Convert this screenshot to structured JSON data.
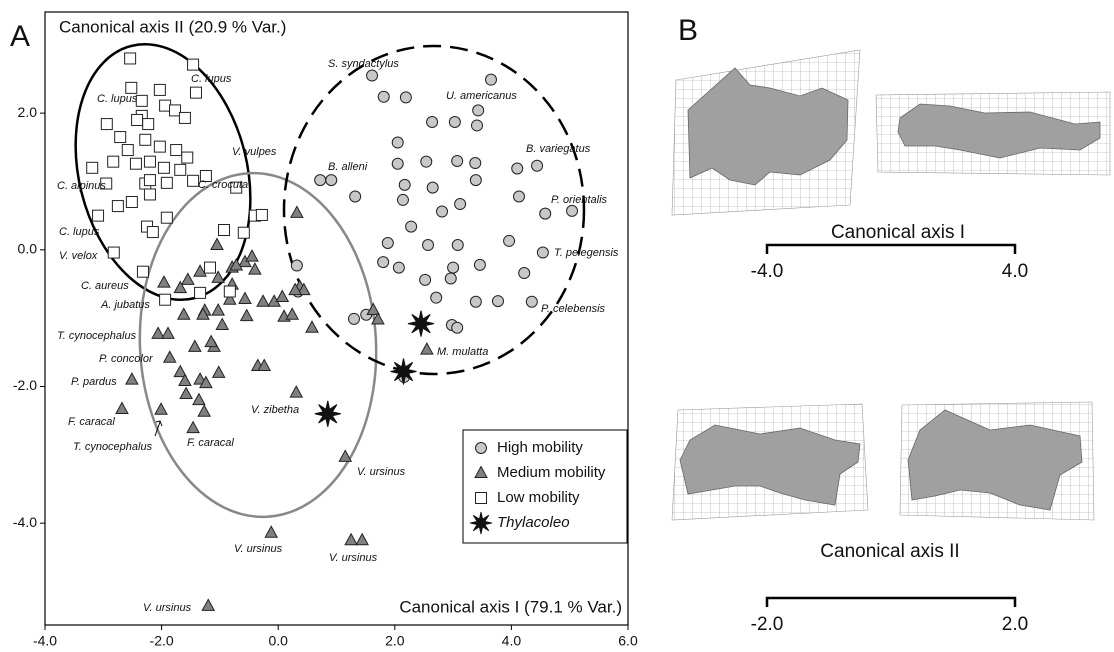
{
  "chart_data": {
    "type": "scatter",
    "panel_label": "A",
    "x_label": "Canonical axis I (79.1 % Var.)",
    "y_label": "Canonical axis II (20.9 % Var.)",
    "xlim": [
      -4,
      6
    ],
    "ylim": [
      -5.49,
      3.48
    ],
    "xticks": [
      {
        "value": -4,
        "label": "-4.0"
      },
      {
        "value": -2,
        "label": "-2.0"
      },
      {
        "value": 0,
        "label": "0.0"
      },
      {
        "value": 2,
        "label": "2.0"
      },
      {
        "value": 4,
        "label": "4.0"
      },
      {
        "value": 6,
        "label": "6.0"
      }
    ],
    "yticks": [
      {
        "value": 2,
        "label": "2.0"
      },
      {
        "value": 0,
        "label": "0.0"
      },
      {
        "value": -2,
        "label": "-2.0"
      },
      {
        "value": -4,
        "label": "-4.0"
      }
    ],
    "series": [
      {
        "name": "High mobility",
        "marker": "circle",
        "color": "#c8c8c8",
        "x": [
          1.61,
          1.81,
          2.19,
          3.65,
          3.43,
          2.64,
          3.03,
          3.41,
          0.72,
          0.91,
          1.32,
          2.05,
          2.54,
          3.07,
          3.38,
          2.05,
          4.1,
          4.44,
          2.17,
          2.65,
          3.39,
          4.13,
          4.58,
          5.04,
          2.14,
          2.81,
          3.12,
          2.28,
          1.88,
          2.57,
          3.08,
          3.96,
          0.32,
          1.8,
          2.07,
          3.0,
          3.46,
          4.54,
          4.22,
          2.52,
          2.96,
          2.71,
          3.39,
          3.77,
          4.35,
          1.51,
          1.3,
          2.98,
          3.07,
          2.16,
          0.34
        ],
        "values": [
          2.55,
          2.24,
          2.23,
          2.49,
          2.04,
          1.87,
          1.87,
          1.82,
          1.02,
          1.02,
          0.78,
          1.26,
          1.29,
          1.3,
          1.27,
          1.57,
          1.19,
          1.23,
          0.95,
          0.91,
          1.02,
          0.78,
          0.53,
          0.57,
          0.73,
          0.56,
          0.67,
          0.34,
          0.1,
          0.07,
          0.07,
          0.13,
          -0.23,
          -0.18,
          -0.26,
          -0.26,
          -0.22,
          -0.04,
          -0.34,
          -0.44,
          -0.42,
          -0.7,
          -0.76,
          -0.75,
          -0.76,
          -0.95,
          -1.01,
          -1.1,
          -1.14,
          -1.86,
          -0.61
        ]
      },
      {
        "name": "Medium mobility",
        "marker": "triangle",
        "color": "#808080",
        "x": [
          0.32,
          -0.57,
          -0.79,
          -0.72,
          -1.05,
          -0.45,
          -0.4,
          -1.55,
          -1.34,
          -1.96,
          -1.68,
          -1.03,
          -0.79,
          -0.57,
          -0.54,
          -0.83,
          -1.26,
          -1.03,
          -1.29,
          -1.62,
          -0.96,
          -2.06,
          -1.89,
          -1.1,
          -1.15,
          -1.86,
          -1.43,
          -1.68,
          -1.6,
          -1.34,
          -1.24,
          -1.02,
          -2.51,
          -1.58,
          -1.36,
          -1.27,
          -2.68,
          -2.01,
          -1.46,
          -0.35,
          -0.24,
          0.31,
          0.1,
          0.24,
          0.37,
          0.44,
          0.58,
          -0.26,
          -0.07,
          0.07,
          0.29,
          1.63,
          1.71,
          2.55,
          1.15,
          -0.12,
          1.25,
          1.44,
          -1.2
        ],
        "values": [
          0.54,
          -0.18,
          -0.26,
          -0.23,
          0.07,
          -0.1,
          -0.29,
          -0.44,
          -0.32,
          -0.48,
          -0.56,
          -0.41,
          -0.51,
          -0.72,
          -0.97,
          -0.73,
          -0.89,
          -0.89,
          -0.95,
          -0.95,
          -1.1,
          -1.23,
          -1.23,
          -1.42,
          -1.35,
          -1.58,
          -1.42,
          -1.79,
          -1.92,
          -1.9,
          -1.95,
          -1.8,
          -1.9,
          -2.11,
          -2.2,
          -2.37,
          -2.33,
          -2.34,
          -2.61,
          -1.7,
          -1.7,
          -2.09,
          -0.98,
          -0.95,
          -0.54,
          -0.59,
          -1.14,
          -0.76,
          -0.76,
          -0.69,
          -0.59,
          -0.88,
          -1.02,
          -1.46,
          -3.03,
          -4.14,
          -4.25,
          -4.25,
          -5.21
        ]
      },
      {
        "name": "Low mobility",
        "marker": "square",
        "color": "#ffffff",
        "x": [
          -2.54,
          -2.52,
          -2.03,
          -1.41,
          -1.94,
          -2.34,
          -2.94,
          -2.42,
          -2.23,
          -1.77,
          -1.6,
          -2.71,
          -2.58,
          -2.28,
          -2.03,
          -1.75,
          -1.56,
          -3.19,
          -2.83,
          -2.44,
          -2.2,
          -1.96,
          -1.68,
          -1.24,
          -2.95,
          -2.28,
          -2.2,
          -1.91,
          -1.46,
          -2.75,
          -2.51,
          -2.2,
          -3.09,
          -1.91,
          -0.72,
          -0.4,
          -0.28,
          -0.93,
          -0.59,
          -2.25,
          -2.15,
          -2.82,
          -2.32,
          -1.17,
          -1.34,
          -1.94,
          -0.83,
          -1.46,
          -2.34
        ],
        "values": [
          2.8,
          2.37,
          2.34,
          2.3,
          2.11,
          1.96,
          1.84,
          1.9,
          1.84,
          2.04,
          1.93,
          1.65,
          1.46,
          1.61,
          1.51,
          1.46,
          1.35,
          1.2,
          1.29,
          1.26,
          1.29,
          1.2,
          1.17,
          1.08,
          0.97,
          0.97,
          1.02,
          0.98,
          1.01,
          0.64,
          0.7,
          0.81,
          0.5,
          0.47,
          0.91,
          0.5,
          0.51,
          0.29,
          0.25,
          0.34,
          0.26,
          -0.04,
          -0.32,
          -0.26,
          -0.63,
          -0.73,
          -0.61,
          2.71,
          2.18
        ]
      },
      {
        "name": "Thylacoleo",
        "marker": "star",
        "color": "#111111",
        "x": [
          2.45,
          2.15,
          0.85
        ],
        "values": [
          -1.08,
          -1.78,
          -2.4
        ]
      }
    ],
    "annotations": [
      "S. syndactylus",
      "U. americanus",
      "C. lupus",
      "C. lupus",
      "V. vulpes",
      "B. alleni",
      "B. variegatus",
      "C. crocuta",
      "C. alpinus",
      "P. orientalis",
      "C. lupus",
      "T. pelegensis",
      "V. velox",
      "C. aureus",
      "A. jubatus",
      "P. celebensis",
      "T. cynocephalus",
      "M. mulatta",
      "P. concolor",
      "P. pardus",
      "V. zibetha",
      "F. caracal",
      "F. caracal",
      "T. cynocephalus",
      "V. ursinus",
      "V. ursinus",
      "V. ursinus",
      "V. ursinus"
    ]
  },
  "panel_b": {
    "label": "B",
    "scales": [
      {
        "title": "Canonical axis I",
        "left": "-4.0",
        "right": "4.0"
      },
      {
        "title": "Canonical axis II",
        "left": "-2.0",
        "right": "2.0"
      }
    ]
  }
}
